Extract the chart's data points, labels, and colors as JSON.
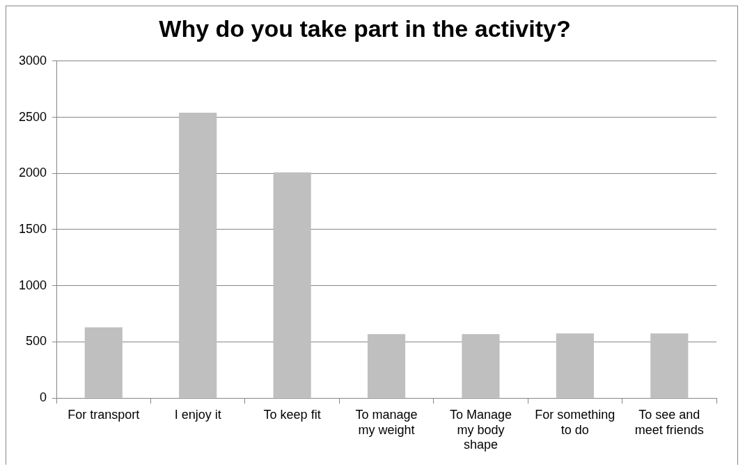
{
  "chart_data": {
    "type": "bar",
    "title": "Why do you take part in the activity?",
    "categories": [
      "For transport",
      "I enjoy it",
      "To keep fit",
      "To manage my weight",
      "To Manage my body shape",
      "For something to do",
      "To see and meet friends"
    ],
    "values": [
      630,
      2540,
      2010,
      570,
      570,
      575,
      575
    ],
    "color": "#bfbfbf",
    "ylim": [
      0,
      3000
    ],
    "yticks": [
      0,
      500,
      1000,
      1500,
      2000,
      2500,
      3000
    ],
    "grid": "y",
    "legend": false
  }
}
